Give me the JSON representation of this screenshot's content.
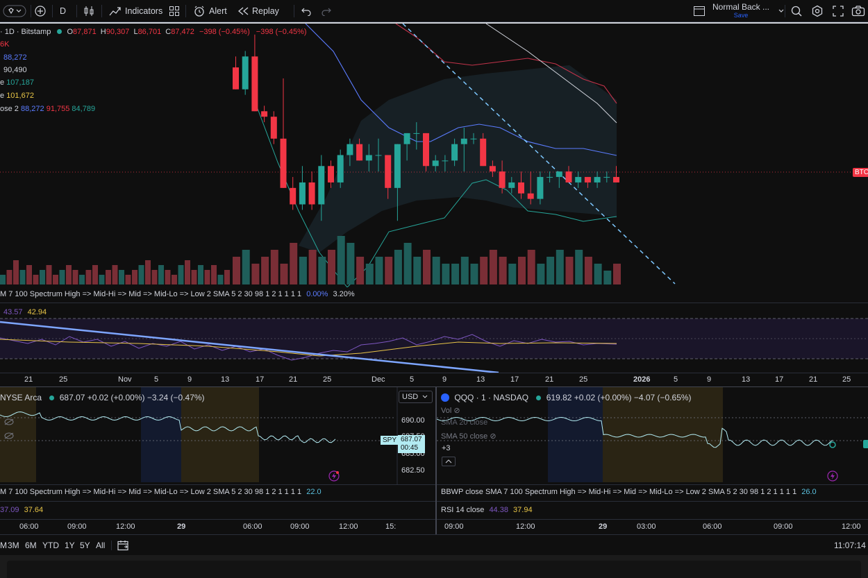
{
  "toolbar": {
    "interval": "D",
    "indicators_label": "Indicators",
    "alert_label": "Alert",
    "replay_label": "Replay",
    "layout_name": "Normal Back ...",
    "layout_save": "Save"
  },
  "main_chart": {
    "symbol_title": "· 1D · Bitstamp",
    "ohlc": {
      "o_label": "O",
      "o": "87,871",
      "h_label": "H",
      "h": "90,307",
      "l_label": "L",
      "l": "86,701",
      "c_label": "C",
      "c": "87,472",
      "change": "−398 (−0.45%)",
      "change2": "−398 (−0.45%)"
    },
    "legend_lines": [
      {
        "label": "6K",
        "values": [
          ""
        ]
      },
      {
        "label": "",
        "values": [
          "88,272"
        ]
      },
      {
        "label": "",
        "values": [
          "90,490"
        ]
      },
      {
        "label": "e",
        "values": [
          "107,187"
        ]
      },
      {
        "label": "e",
        "values": [
          "101,672"
        ]
      },
      {
        "label": "ose 2",
        "values": [
          "88,272",
          "91,755",
          "84,789"
        ]
      }
    ],
    "price_tag": "BTC",
    "colors": {
      "up": "#26a69a",
      "down": "#f23645"
    }
  },
  "bbwp_main": {
    "label": "M 7 100 Spectrum High => Mid-Hi => Mid => Mid-Lo => Low 2 SMA 5 2 30 98 1 2 1 1 1 1",
    "v1": "0.00%",
    "v2": "3.20%"
  },
  "rsi_main": {
    "v1": "43.57",
    "v2": "42.94"
  },
  "date_axis": [
    "21",
    "25",
    "Nov",
    "5",
    "9",
    "13",
    "17",
    "21",
    "25",
    "Dec",
    "5",
    "9",
    "13",
    "17",
    "21",
    "25",
    "2026",
    "5",
    "9",
    "13",
    "17",
    "21",
    "25"
  ],
  "spy_pane": {
    "title": "NYSE Arca",
    "values": "687.07 +0.02 (+0.00%) −3.24 (−0.47%)",
    "currency": "USD",
    "price_labels": [
      "690.00",
      "687.50",
      "685.00",
      "682.50"
    ],
    "tag_symbol": "SPY",
    "tag_price": "687.07",
    "tag_time": "00:45",
    "bbwp_label": "M 7 100 Spectrum High => Mid-Hi => Mid => Mid-Lo => Low 2 SMA 5 2 30 98 1 2 1 1 1 1",
    "bbwp_value": "22.0",
    "rsi_v1": "37.09",
    "rsi_v2": "37.64",
    "time_axis": [
      "06:00",
      "09:00",
      "12:00",
      "29",
      "06:00",
      "09:00",
      "12:00",
      "15:"
    ]
  },
  "qqq_pane": {
    "title": "QQQ · 1 · NASDAQ",
    "values": "619.82 +0.02 (+0.00%) −4.07 (−0.65%)",
    "vol_label": "Vol",
    "sma20_label": "SMA 20 close",
    "sma50_label": "SMA 50 close",
    "more_label": "+3",
    "bbwp_label": "BBWP close SMA 7 100 Spectrum High => Mid-Hi => Mid => Mid-Lo => Low 2 SMA 5 2 30 98 1 2 1 1 1 1",
    "bbwp_value": "26.0",
    "rsi_label": "RSI 14 close",
    "rsi_v1": "44.38",
    "rsi_v2": "37.94",
    "time_axis": [
      "09:00",
      "12:00",
      "29",
      "03:00",
      "06:00",
      "09:00",
      "12:00"
    ]
  },
  "bottom_bar": {
    "ranges": [
      "M",
      "3M",
      "6M",
      "YTD",
      "1Y",
      "5Y",
      "All"
    ],
    "clock": "11:07:14"
  },
  "chart_data": {
    "type": "candlestick",
    "ohlc": [
      [
        108,
        110,
        104,
        104
      ],
      [
        104,
        111,
        103,
        110
      ],
      [
        110,
        114,
        100,
        100
      ],
      [
        100,
        101,
        98,
        99
      ],
      [
        99,
        100,
        94,
        95
      ],
      [
        95,
        106,
        86,
        86
      ],
      [
        86,
        88,
        82,
        83
      ],
      [
        83,
        90,
        82,
        87
      ],
      [
        87,
        89,
        82,
        83
      ],
      [
        83,
        92,
        80,
        90
      ],
      [
        90,
        91,
        86,
        87
      ],
      [
        87,
        93,
        86,
        92
      ],
      [
        92,
        95,
        90,
        94
      ],
      [
        94,
        95,
        91,
        91
      ],
      [
        91,
        94,
        89,
        92
      ],
      [
        92,
        95,
        89,
        92
      ],
      [
        92,
        92,
        84,
        86
      ],
      [
        86,
        94,
        80,
        94
      ],
      [
        94,
        96,
        91,
        96
      ],
      [
        96,
        98,
        93,
        96
      ],
      [
        96,
        96,
        89,
        90
      ],
      [
        90,
        92,
        89,
        91
      ],
      [
        91,
        92,
        89,
        91
      ],
      [
        91,
        95,
        90,
        94
      ],
      [
        94,
        97,
        89,
        95
      ],
      [
        95,
        96,
        94,
        95
      ],
      [
        95,
        96,
        90,
        90
      ],
      [
        90,
        91,
        88,
        89
      ],
      [
        89,
        91,
        85,
        86
      ],
      [
        86,
        88,
        85,
        87
      ],
      [
        87,
        89,
        84,
        85
      ],
      [
        85,
        89,
        83,
        84
      ],
      [
        84,
        89,
        83,
        88
      ],
      [
        88,
        89,
        87,
        88
      ],
      [
        88,
        89,
        86,
        89
      ],
      [
        89,
        90,
        87,
        87
      ],
      [
        87,
        89,
        86,
        88
      ],
      [
        88,
        88,
        86,
        87
      ],
      [
        87,
        89,
        86,
        88
      ],
      [
        88,
        89,
        87,
        88
      ],
      [
        88,
        90,
        87,
        87
      ]
    ],
    "volume": [
      4,
      5,
      3,
      4,
      5,
      3,
      6,
      4,
      5,
      4,
      5,
      7,
      6,
      4,
      3,
      4,
      4,
      5,
      6,
      4,
      5,
      4,
      3,
      3,
      4,
      3,
      4,
      5,
      4,
      3,
      4,
      5,
      3,
      4,
      5,
      4,
      5,
      4,
      3,
      2,
      3
    ],
    "ylabel": "",
    "xlabel": ""
  }
}
